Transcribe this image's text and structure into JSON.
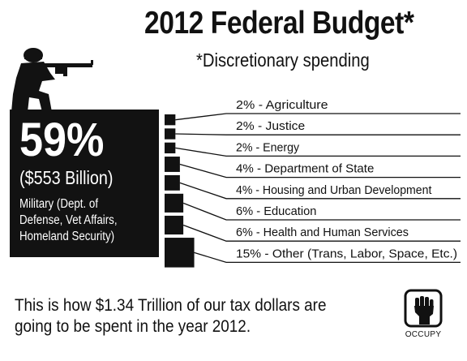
{
  "title": "2012 Federal Budget*",
  "subtitle": "*Discretionary spending",
  "military": {
    "percent": "59%",
    "amount": "($553 Billion)",
    "desc_line1": "Military (Dept. of",
    "desc_line2": "Defense, Vet Affairs,",
    "desc_line3": "Homeland Security)"
  },
  "chart_data": {
    "type": "bar",
    "categories": [
      "Military (Dept. of Defense, Vet Affairs, Homeland Security)",
      "Agriculture",
      "Justice",
      "Energy",
      "Department of State",
      "Housing and Urban Development",
      "Education",
      "Health and Human Services",
      "Other (Trans, Labor, Space, Etc.)"
    ],
    "values": [
      59,
      2,
      2,
      2,
      4,
      4,
      6,
      6,
      15
    ],
    "labels": [
      "59%",
      "2% - Agriculture",
      "2% - Justice",
      "2% - Energy",
      "4% - Department of State",
      "4% - Housing and Urban Development",
      "6% - Education",
      "6% - Health and Human Services",
      "15% - Other (Trans, Labor, Space, Etc.)"
    ],
    "military_amount": "($553 Billion)",
    "title": "2012 Federal Budget*",
    "subtitle": "*Discretionary spending",
    "colors": {
      "bar": "#121212",
      "line": "#111111",
      "background": "#ffffff"
    }
  },
  "footer": {
    "line1": "This is how $1.34 Trillion of our tax dollars are",
    "line2": "going to be spent in the year 2012."
  },
  "logo": {
    "icon": "raised-fist-icon",
    "text": "OCCUPY"
  },
  "soldier_icon": "soldier-silhouette-icon"
}
